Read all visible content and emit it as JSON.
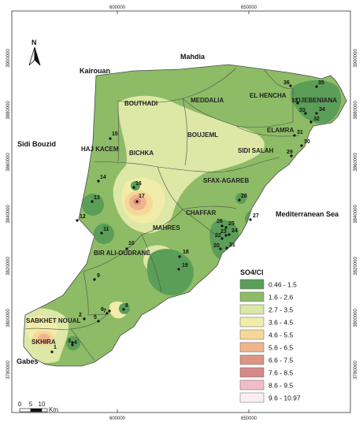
{
  "coords": {
    "top": [
      "600000",
      "650000"
    ],
    "bottom": [
      "600000",
      "650000"
    ],
    "left": [
      "3900000",
      "3880000",
      "3860000",
      "3840000",
      "3820000",
      "3800000",
      "3780000"
    ],
    "right": [
      "3900000",
      "3880000",
      "3860000",
      "3840000",
      "3820000",
      "3800000",
      "3780000"
    ]
  },
  "north_label": "N",
  "surroundings": {
    "kairouan": "Kairouan",
    "mahdia": "Mahdia",
    "sidi_bouzid": "Sidi Bouzid",
    "sea": "Mediterranean Sea",
    "gabes": "Gabes"
  },
  "delegations": {
    "bouthadi": "BOUTHADI",
    "meddalia": "MEDDALIA",
    "el_hencha": "EL HENCHA",
    "djebeniana": "DJEBENIANA",
    "elamra": "ELAMRA",
    "boujeml": "BOUJEML",
    "haj_kacem": "HAJ KACEM",
    "bichka": "BICHKA",
    "sidi_salah": "SIDI SALAH",
    "sfax_agareb": "SFAX-AGAREB",
    "chaffar": "CHAFFAR",
    "mahres": "MAHRES",
    "bir_ali": "BIR ALI-OUDRANE",
    "sabkhet": "SABKHET NOUAL",
    "skhira": "SKHIRA"
  },
  "wells": [
    "1",
    "2",
    "3",
    "4",
    "5",
    "6",
    "7",
    "8",
    "9",
    "10",
    "11",
    "12",
    "13",
    "14",
    "15",
    "16",
    "17",
    "18",
    "19",
    "20",
    "21",
    "22",
    "23",
    "24",
    "25",
    "26",
    "27",
    "28",
    "29",
    "30",
    "31",
    "32",
    "33",
    "34",
    "35",
    "36",
    "37"
  ],
  "legend": {
    "title": "SO4/Cl",
    "classes": [
      {
        "label": "0.46 - 1.5",
        "color": "#5a9e57"
      },
      {
        "label": "1.6 - 2.6",
        "color": "#8dbb66"
      },
      {
        "label": "2.7 - 3.5",
        "color": "#dde7a6"
      },
      {
        "label": "3.6 - 4.5",
        "color": "#f1eca8"
      },
      {
        "label": "4.6 - 5.5",
        "color": "#f6d79a"
      },
      {
        "label": "5.6 - 6.5",
        "color": "#f0b48a"
      },
      {
        "label": "6.6 - 7.5",
        "color": "#dd9582"
      },
      {
        "label": "7.6 - 8.5",
        "color": "#d7898a"
      },
      {
        "label": "8.6 - 9.5",
        "color": "#f2bcc8"
      },
      {
        "label": "9.6 - 10.97",
        "color": "#fbeef3"
      }
    ]
  },
  "scale": {
    "labels": [
      "0",
      "5",
      "10"
    ],
    "unit": "Km"
  }
}
